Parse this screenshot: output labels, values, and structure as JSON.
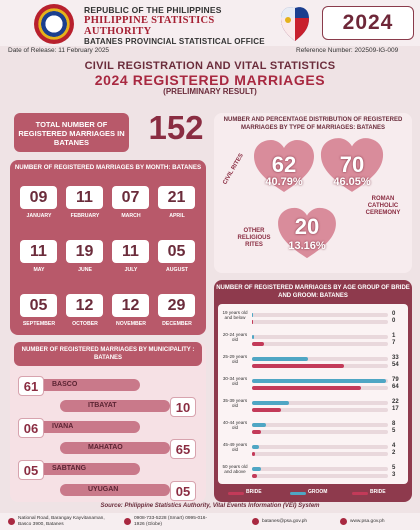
{
  "header": {
    "line1": "REPUBLIC OF THE PHILIPPINES",
    "line2": "PHILIPPINE STATISTICS AUTHORITY",
    "line3": "BATANES PROVINCIAL STATISTICAL OFFICE",
    "year": "2024"
  },
  "meta": {
    "release": "Date of Release: 11 February 2025",
    "reference": "Reference Number: 202509-IG-009"
  },
  "titles": {
    "t1": "CIVIL REGISTRATION AND VITAL STATISTICS",
    "t2": "2024 REGISTERED MARRIAGES",
    "t3": "(PRELIMINARY RESULT)"
  },
  "total": {
    "label": "TOTAL NUMBER OF REGISTERED MARRIAGES IN BATANES",
    "value": "152"
  },
  "months": {
    "title": "NUMBER OF REGISTERED MARRIAGES BY MONTH: BATANES",
    "items": [
      {
        "label": "JANUARY",
        "value": "09"
      },
      {
        "label": "FEBRUARY",
        "value": "11"
      },
      {
        "label": "MARCH",
        "value": "07"
      },
      {
        "label": "APRIL",
        "value": "21"
      },
      {
        "label": "MAY",
        "value": "11"
      },
      {
        "label": "JUNE",
        "value": "19"
      },
      {
        "label": "JULY",
        "value": "11"
      },
      {
        "label": "AUGUST",
        "value": "05"
      },
      {
        "label": "SEPTEMBER",
        "value": "05"
      },
      {
        "label": "OCTOBER",
        "value": "12"
      },
      {
        "label": "NOVEMBER",
        "value": "12"
      },
      {
        "label": "DECEMBER",
        "value": "29"
      }
    ]
  },
  "types": {
    "title": "NUMBER AND PERCENTAGE DISTRIBUTION OF REGISTERED MARRIAGES BY TYPE OF MARRIAGES: BATANES",
    "items": [
      {
        "label": "CIVIL RITES",
        "value": "62",
        "percent": "40.79%"
      },
      {
        "label": "ROMAN CATHOLIC CEREMONY",
        "value": "70",
        "percent": "46.05%"
      },
      {
        "label": "OTHER RELIGIOUS RITES",
        "value": "20",
        "percent": "13.16%"
      }
    ]
  },
  "municipalities": {
    "title": "NUMBER OF REGISTERED MARRIAGES BY MUNICIPALITY : BATANES",
    "items": [
      {
        "name": "BASCO",
        "value": "61"
      },
      {
        "name": "ITBAYAT",
        "value": "10"
      },
      {
        "name": "IVANA",
        "value": "06"
      },
      {
        "name": "MAHATAO",
        "value": "65"
      },
      {
        "name": "SABTANG",
        "value": "05"
      },
      {
        "name": "UYUGAN",
        "value": "05"
      }
    ]
  },
  "chart_data": {
    "type": "bar",
    "title": "NUMBER OF REGISTERED MARRIAGES BY AGE GROUP OF BRIDE AND GROOM: BATANES",
    "categories": [
      "19 years old and below",
      "20-24 years old",
      "25-29 years old",
      "30-34 years old",
      "35-39 years old",
      "40-44 years old",
      "45-49 years old",
      "50 years old and above"
    ],
    "series": [
      {
        "name": "GROOM",
        "color": "#4fa6c4",
        "values": [
          0,
          1,
          33,
          79,
          22,
          8,
          4,
          5
        ]
      },
      {
        "name": "BRIDE",
        "color": "#c33a59",
        "values": [
          0,
          7,
          54,
          64,
          17,
          5,
          2,
          3
        ]
      }
    ],
    "xlim": [
      0,
      80
    ],
    "legend_labels": [
      "BRIDE",
      "GROOM",
      "BRIDE"
    ]
  },
  "source": "Source: Philippine Statistics Authority, Vital Events Information (VEI) System",
  "footer": {
    "address": "National Road, Barangay Kayvitanaman, Basco 3900, Batanes",
    "phones": "0908-733-5228 (Smart) 0995-016-1926 (Globe)",
    "email": "batanes@psa.gov.ph",
    "web": "www.psa.gov.ph"
  },
  "colors": {
    "accent": "#b8596a",
    "dark": "#8e3a4d",
    "groom": "#4fa6c4",
    "bride": "#c33a59"
  }
}
